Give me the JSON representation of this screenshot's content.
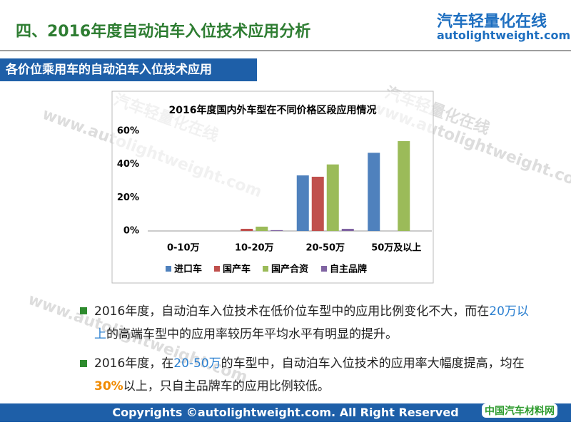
{
  "header": {
    "title": "四、2016年度自动泊车入位技术应用分析",
    "logo_text": "汽车轻量化在线",
    "logo_url": "autolightweight.com"
  },
  "section_title": "各价位乘用车的自动泊车入位技术应用",
  "watermark": {
    "url": "www.autolightweight.com",
    "name": "汽车轻量化在线"
  },
  "chart_data": {
    "type": "bar",
    "title": "2016年度国内外车型在不同价格区段应用情况",
    "categories": [
      "0-10万",
      "10-20万",
      "20-50万",
      "50万及以上"
    ],
    "series": [
      {
        "name": "进口车",
        "color": "#4f81bd",
        "values": [
          0,
          0,
          33.4,
          47
        ]
      },
      {
        "name": "国产车",
        "color": "#c0504d",
        "values": [
          0,
          1.3,
          32.6,
          null
        ]
      },
      {
        "name": "国产合资",
        "color": "#9bbb59",
        "values": [
          0,
          2.6,
          40,
          54
        ]
      },
      {
        "name": "自主品牌",
        "color": "#8064a2",
        "values": [
          0,
          0.5,
          1.3,
          0
        ]
      }
    ],
    "ylim": [
      0,
      60
    ],
    "yticks": [
      {
        "value": 0,
        "label": "0%"
      },
      {
        "value": 20,
        "label": "20%"
      },
      {
        "value": 40,
        "label": "40%"
      },
      {
        "value": 60,
        "label": "60%"
      }
    ],
    "grid": false,
    "legend": "bottom"
  },
  "bullets": [
    [
      "2016年度，自动泊车入位技术在低价位车型中的应用比例变化不大，而在",
      "20万以上",
      "的高端车型中的应用率较历年平均水平有明显的提升。"
    ],
    [
      "2016年度，在",
      "20-50万",
      "的车型中，自动泊车入位技术的应用率大幅度提高，均在",
      "30%",
      "以上，只自主品牌车的应用比例较低。"
    ]
  ],
  "footer": {
    "copyright": "Copyrights ©autolightweight.com. All Right Reserved",
    "badge": "中国汽车材料网"
  }
}
